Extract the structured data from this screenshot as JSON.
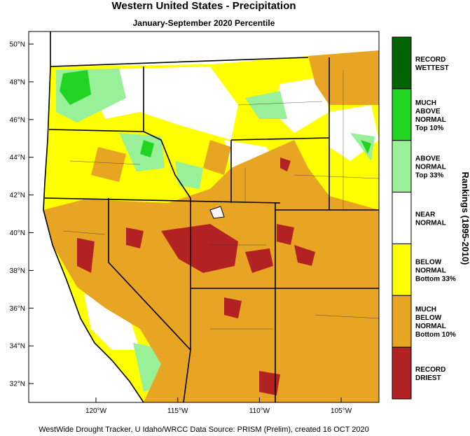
{
  "title": "Western United States - Precipitation",
  "subtitle": "January-September 2020 Percentile",
  "map": {
    "lat_labels": [
      "50°N",
      "48°N",
      "46°N",
      "44°N",
      "42°N",
      "40°N",
      "38°N",
      "36°N",
      "34°N",
      "32°N"
    ],
    "lon_labels": [
      "120°W",
      "115°W",
      "110°W",
      "105°W"
    ]
  },
  "legend": {
    "title": "Rankings (1895-2010)",
    "items": [
      {
        "lines": [
          "RECORD",
          "WETTEST"
        ],
        "color": "#006400"
      },
      {
        "lines": [
          "MUCH",
          "ABOVE",
          "NORMAL",
          "Top 10%"
        ],
        "color": "#22d422"
      },
      {
        "lines": [
          "ABOVE",
          "NORMAL",
          "Top 33%"
        ],
        "color": "#98f098"
      },
      {
        "lines": [
          "NEAR",
          "NORMAL"
        ],
        "color": "#ffffff"
      },
      {
        "lines": [
          "BELOW",
          "NORMAL",
          "Bottom 33%"
        ],
        "color": "#ffff00"
      },
      {
        "lines": [
          "MUCH",
          "BELOW",
          "NORMAL",
          "Bottom 10%"
        ],
        "color": "#e8a524"
      },
      {
        "lines": [
          "RECORD",
          "DRIEST"
        ],
        "color": "#b22222"
      }
    ]
  },
  "footer": "WestWide Drought Tracker, U Idaho/WRCC Data Source: PRISM (Prelim), created 16 OCT 2020"
}
